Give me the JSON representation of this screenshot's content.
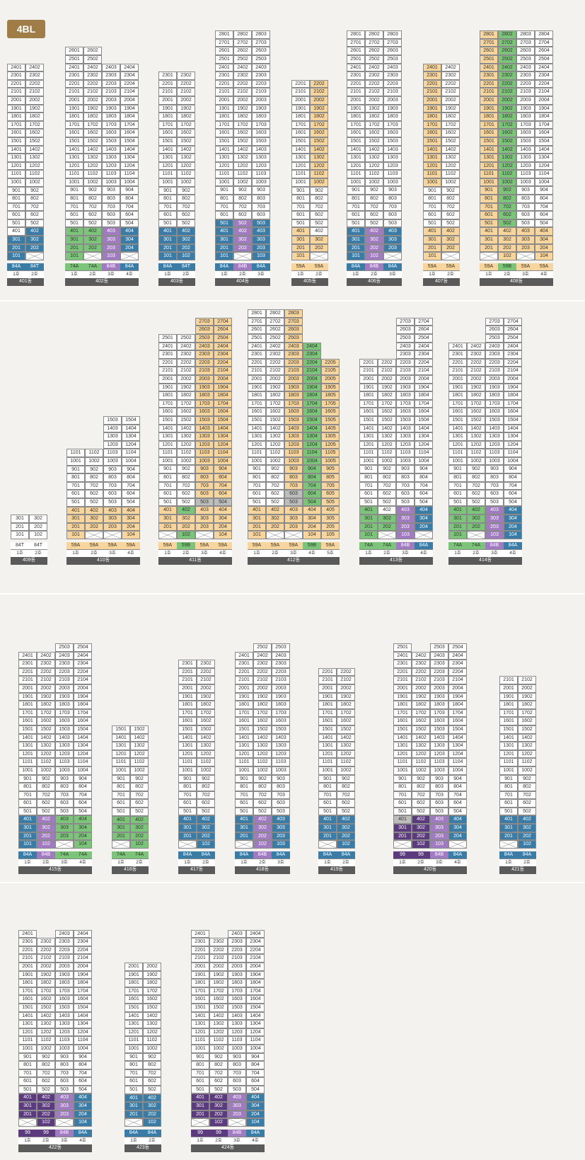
{
  "block_label": "4BL",
  "buildings": [
    {
      "name": "401동",
      "x": 10,
      "bottom": 404,
      "top": 24,
      "cols": 2,
      "types": [
        [
          "84A",
          "b"
        ],
        [
          "84T",
          "b"
        ]
      ],
      "lines": [
        "1호",
        "2호"
      ],
      "colored": {
        "301": "b",
        "302": "b",
        "201": "b",
        "202": "b",
        "101": "b",
        "402": "b"
      },
      "x_cells": [
        "102"
      ]
    },
    {
      "name": "402동",
      "x": 92,
      "bottom": 404,
      "top": 26,
      "cols": 4,
      "col_tops": {
        "3": 24,
        "4": 24
      },
      "types": [
        [
          "74A",
          "g"
        ],
        [
          "74A",
          "g"
        ],
        [
          "84B",
          "p"
        ],
        [
          "84A",
          "b"
        ]
      ],
      "lines": [
        "1호",
        "2호",
        "3호",
        "4호"
      ],
      "colored": {
        "401": "g",
        "402": "g",
        "403": "p",
        "404": "b",
        "301": "g",
        "302": "g",
        "303": "p",
        "304": "b",
        "201": "g",
        "202": "g",
        "203": "p",
        "204": "b",
        "101": "g",
        "103": "p"
      },
      "x_cells": [
        "102",
        "104"
      ]
    },
    {
      "name": "403동",
      "x": 224,
      "bottom": 404,
      "top": 23,
      "cols": 2,
      "types": [
        [
          "84A",
          "b"
        ],
        [
          "84T",
          "b"
        ]
      ],
      "lines": [
        "1호",
        "2호"
      ],
      "colored": {
        "401": "b",
        "402": "b",
        "301": "b",
        "302": "b",
        "201": "b",
        "202": "b",
        "101": "b",
        "102": "b"
      },
      "x_cells": []
    },
    {
      "name": "404동",
      "x": 304,
      "bottom": 404,
      "top": 28,
      "cols": 3,
      "types": [
        [
          "84A",
          "b"
        ],
        [
          "84B",
          "p"
        ],
        [
          "84A",
          "b"
        ]
      ],
      "lines": [
        "1호",
        "2호",
        "3호"
      ],
      "colored": {
        "501": "b",
        "502": "p",
        "503": "b",
        "401": "b",
        "402": "p",
        "403": "b",
        "301": "b",
        "302": "p",
        "303": "b",
        "201": "b",
        "202": "p",
        "203": "b",
        "101": "b",
        "103": "b"
      },
      "x_cells": [
        "102"
      ]
    },
    {
      "name": "405동",
      "x": 412,
      "bottom": 404,
      "top": 22,
      "cols": 2,
      "types": [
        [
          "59A",
          "o"
        ],
        [
          "59A",
          "o"
        ]
      ],
      "lines": [
        "1호",
        "2호"
      ],
      "colored": {
        "2202": "o",
        "2102": "o",
        "2002": "o",
        "1902": "o",
        "1802": "o",
        "1702": "o",
        "1602": "o",
        "1502": "o",
        "1402": "o",
        "1302": "o",
        "1202": "o",
        "1102": "o",
        "1002": "o",
        "401": "o",
        "301": "o",
        "302": "o",
        "201": "o",
        "202": "o",
        "101": "o"
      },
      "x_cells": [
        "102"
      ]
    },
    {
      "name": "406동",
      "x": 490,
      "bottom": 404,
      "top": 28,
      "cols": 3,
      "types": [
        [
          "84A",
          "b"
        ],
        [
          "84B",
          "p"
        ],
        [
          "84A",
          "b"
        ]
      ],
      "lines": [
        "1호",
        "2호",
        "3호"
      ],
      "colored": {
        "401": "b",
        "402": "p",
        "403": "b",
        "301": "b",
        "302": "p",
        "303": "b",
        "201": "b",
        "202": "p",
        "203": "b",
        "101": "b",
        "102": "p"
      },
      "x_cells": [
        "103"
      ]
    },
    {
      "name": "407동",
      "x": 598,
      "bottom": 404,
      "top": 24,
      "cols": 2,
      "types": [
        [
          "59A",
          "o"
        ],
        [
          "59A",
          "o"
        ]
      ],
      "lines": [
        "1호",
        "2호"
      ],
      "colored": {
        "2401": "o",
        "2301": "o",
        "2201": "o",
        "2101": "o",
        "2001": "o",
        "1901": "o",
        "1801": "o",
        "1701": "o",
        "1601": "o",
        "1501": "o",
        "1401": "o",
        "1301": "o",
        "1201": "o",
        "1101": "o",
        "1001": "o",
        "401": "o",
        "402": "o",
        "301": "o",
        "302": "o",
        "201": "o",
        "202": "o",
        "101": "o"
      },
      "x_cells": [
        "102"
      ]
    },
    {
      "name": "408동",
      "x": 678,
      "bottom": 404,
      "top": 28,
      "cols": 4,
      "types": [
        [
          "59A",
          "o"
        ],
        [
          "59B",
          "g"
        ],
        [
          "59A",
          "o"
        ],
        [
          "59A",
          "o"
        ]
      ],
      "lines": [
        "1호",
        "2호",
        "3호",
        "4호"
      ],
      "colored_cols": {
        "1": "o",
        "2": "g"
      },
      "colored_low": {
        "401": "o",
        "402": "o",
        "403": "o",
        "404": "o",
        "301": "o",
        "302": "o",
        "303": "o",
        "304": "o",
        "201": "o",
        "202": "o",
        "203": "o",
        "204": "o",
        "102": "o",
        "104": "o"
      },
      "x_cells": [
        "101",
        "103"
      ]
    },
    {
      "name": "409동",
      "x": 15,
      "bottom": 798,
      "top": 3,
      "cols": 2,
      "types": [
        [
          "84T",
          "w"
        ],
        [
          "84T",
          "w"
        ]
      ],
      "lines": [
        "1호",
        "2호"
      ],
      "colored": {},
      "x_cells": []
    },
    {
      "name": "410동",
      "x": 94,
      "bottom": 798,
      "top": 11,
      "cols": 4,
      "col_tops": {
        "3": 15,
        "4": 15
      },
      "types": [
        [
          "59A",
          "o"
        ],
        [
          "59A",
          "o"
        ],
        [
          "59A",
          "o"
        ],
        [
          "59A",
          "o"
        ]
      ],
      "lines": [
        "1호",
        "2호",
        "3호",
        "4호"
      ],
      "colored": {
        "401": "o",
        "402": "o",
        "403": "o",
        "404": "o",
        "301": "o",
        "302": "o",
        "303": "o",
        "304": "o",
        "201": "o",
        "202": "o",
        "203": "o",
        "204": "o",
        "101": "o",
        "104": "o"
      },
      "x_cells": [
        "102",
        "103"
      ]
    },
    {
      "name": "411동",
      "x": 224,
      "bottom": 798,
      "top": 25,
      "cols": 4,
      "col_tops": {
        "3": 27,
        "4": 27
      },
      "types": [
        [
          "59A",
          "o"
        ],
        [
          "59B",
          "g"
        ],
        [
          "59A",
          "o"
        ],
        [
          "59A",
          "o"
        ]
      ],
      "lines": [
        "1호",
        "2호",
        "3호",
        "4호"
      ],
      "colored_cols": {
        "3": "o",
        "4": "o"
      },
      "colored": {
        "401": "o",
        "402": "g",
        "403": "o",
        "404": "o",
        "301": "o",
        "302": "o",
        "303": "o",
        "304": "o",
        "201": "o",
        "202": "o",
        "203": "o",
        "204": "o",
        "102": "g",
        "104": "o",
        "503": "gr",
        "504": "gr"
      },
      "x_cells": [
        "101",
        "103"
      ]
    },
    {
      "name": "412동",
      "x": 350,
      "bottom": 798,
      "top": 28,
      "cols": 5,
      "col_tops": {
        "4": 24,
        "5": 22
      },
      "types": [
        [
          "59A",
          "o"
        ],
        [
          "59A",
          "o"
        ],
        [
          "59A",
          "o"
        ],
        [
          "59B",
          "g"
        ],
        [
          "59A",
          "o"
        ]
      ],
      "lines": [
        "1호",
        "2호",
        "3호",
        "4호",
        "5호"
      ],
      "colored_cols": {
        "3": "o",
        "4": "g",
        "5": "o"
      },
      "colored": {
        "401": "o",
        "402": "o",
        "403": "o",
        "404": "o",
        "405": "o",
        "301": "o",
        "302": "o",
        "303": "o",
        "304": "o",
        "305": "o",
        "201": "o",
        "202": "o",
        "203": "o",
        "204": "o",
        "205": "o",
        "101": "o",
        "104": "o",
        "105": "o",
        "603": "gr",
        "503": "gr"
      },
      "x_cells": [
        "102",
        "103"
      ]
    },
    {
      "name": "413동",
      "x": 508,
      "bottom": 798,
      "top": 22,
      "cols": 4,
      "col_tops": {
        "3": 27,
        "4": 27
      },
      "types": [
        [
          "74A",
          "g"
        ],
        [
          "74A",
          "g"
        ],
        [
          "84B",
          "p"
        ],
        [
          "84A",
          "b"
        ]
      ],
      "lines": [
        "1호",
        "2호",
        "3호",
        "4호"
      ],
      "colored": {
        "401": "g",
        "403": "p",
        "404": "b",
        "301": "g",
        "302": "g",
        "303": "p",
        "304": "b",
        "201": "g",
        "202": "g",
        "203": "p",
        "204": "b",
        "101": "g",
        "103": "p"
      },
      "x_cells": [
        "102",
        "104"
      ]
    },
    {
      "name": "414동",
      "x": 634,
      "bottom": 798,
      "top": 24,
      "cols": 4,
      "col_tops": {
        "3": 27,
        "4": 27
      },
      "types": [
        [
          "74A",
          "g"
        ],
        [
          "74A",
          "g"
        ],
        [
          "84B",
          "p"
        ],
        [
          "84A",
          "b"
        ]
      ],
      "lines": [
        "1호",
        "2호",
        "3호",
        "4호"
      ],
      "colored": {
        "401": "g",
        "402": "g",
        "403": "p",
        "404": "b",
        "301": "g",
        "302": "g",
        "303": "p",
        "304": "b",
        "201": "g",
        "202": "g",
        "203": "p",
        "204": "b",
        "101": "g",
        "103": "p",
        "104": "b"
      },
      "x_cells": [
        "102"
      ]
    },
    {
      "name": "415동",
      "x": 26,
      "bottom": 1235,
      "top": 24,
      "cols": 4,
      "col_tops": {
        "3": 25,
        "4": 25
      },
      "types": [
        [
          "84A",
          "b"
        ],
        [
          "84B",
          "p"
        ],
        [
          "74A",
          "g"
        ],
        [
          "74A",
          "g"
        ]
      ],
      "lines": [
        "1호",
        "2호",
        "3호",
        "4호"
      ],
      "colored": {
        "401": "b",
        "402": "p",
        "403": "g",
        "404": "g",
        "301": "b",
        "302": "p",
        "303": "g",
        "304": "g",
        "201": "b",
        "202": "p",
        "203": "g",
        "204": "g",
        "101": "b",
        "102": "p",
        "104": "g"
      },
      "x_cells": [
        "103"
      ]
    },
    {
      "name": "416동",
      "x": 158,
      "bottom": 1235,
      "top": 15,
      "cols": 2,
      "types": [
        [
          "74A",
          "g"
        ],
        [
          "74A",
          "g"
        ]
      ],
      "lines": [
        "1호",
        "2호"
      ],
      "colored": {
        "401": "g",
        "402": "g",
        "301": "g",
        "302": "g",
        "201": "g",
        "202": "g",
        "102": "g"
      },
      "x_cells": [
        "101"
      ]
    },
    {
      "name": "417동",
      "x": 252,
      "bottom": 1235,
      "top": 23,
      "cols": 2,
      "types": [
        [
          "84A",
          "b"
        ],
        [
          "84A",
          "b"
        ]
      ],
      "lines": [
        "1호",
        "2호"
      ],
      "colored": {
        "401": "b",
        "402": "b",
        "301": "b",
        "302": "b",
        "201": "b",
        "202": "b",
        "102": "b"
      },
      "x_cells": [
        "101"
      ]
    },
    {
      "name": "418동",
      "x": 332,
      "bottom": 1235,
      "top": 24,
      "cols": 3,
      "col_tops": {
        "2": 25,
        "3": 25
      },
      "types": [
        [
          "84A",
          "b"
        ],
        [
          "84B",
          "p"
        ],
        [
          "84A",
          "b"
        ]
      ],
      "lines": [
        "1호",
        "2호",
        "3호"
      ],
      "colored": {
        "401": "b",
        "402": "p",
        "403": "b",
        "301": "b",
        "302": "p",
        "303": "b",
        "201": "b",
        "202": "p",
        "203": "b",
        "102": "p",
        "103": "b"
      },
      "x_cells": [
        "101"
      ]
    },
    {
      "name": "419동",
      "x": 450,
      "bottom": 1235,
      "top": 22,
      "cols": 2,
      "types": [
        [
          "84A",
          "b"
        ],
        [
          "84A",
          "b"
        ]
      ],
      "lines": [
        "1호",
        "2호"
      ],
      "colored": {
        "401": "b",
        "402": "b",
        "301": "b",
        "302": "b",
        "201": "b",
        "202": "b",
        "102": "b"
      },
      "x_cells": [
        "101"
      ]
    },
    {
      "name": "420동",
      "x": 556,
      "bottom": 1235,
      "top": 25,
      "cols": 4,
      "types": [
        [
          "99",
          "d"
        ],
        [
          "99",
          "d"
        ],
        [
          "84B",
          "p"
        ],
        [
          "84A",
          "b"
        ]
      ],
      "lines": [
        "1호",
        "2호",
        "3호",
        "4호"
      ],
      "colored": {
        "402": "d",
        "403": "p",
        "404": "b",
        "301": "d",
        "302": "d",
        "303": "p",
        "304": "b",
        "201": "d",
        "202": "d",
        "203": "p",
        "204": "b",
        "102": "d",
        "103": "p"
      },
      "x_cells": [
        "101",
        "104"
      ],
      "gray": {
        "401": "gr"
      },
      "skip": [
        "2502"
      ]
    },
    {
      "name": "421동",
      "x": 706,
      "bottom": 1235,
      "top": 21,
      "cols": 2,
      "types": [
        [
          "84A",
          "b"
        ],
        [
          "84A",
          "b"
        ]
      ],
      "lines": [
        "1호",
        "2호"
      ],
      "colored": {
        "401": "b",
        "402": "b",
        "301": "b",
        "302": "b",
        "201": "b",
        "202": "b",
        "102": "b"
      },
      "x_cells": [
        "101"
      ]
    },
    {
      "name": "422동",
      "x": 26,
      "bottom": 1628,
      "top": 24,
      "cols": 4,
      "types": [
        [
          "99",
          "d"
        ],
        [
          "99",
          "d"
        ],
        [
          "84B",
          "p"
        ],
        [
          "84A",
          "b"
        ]
      ],
      "lines": [
        "1호",
        "2호",
        "3호",
        "4호"
      ],
      "colored": {
        "401": "d",
        "402": "d",
        "403": "p",
        "404": "b",
        "301": "d",
        "302": "d",
        "303": "p",
        "304": "b",
        "201": "d",
        "202": "d",
        "203": "p",
        "204": "b",
        "102": "d",
        "104": "b"
      },
      "x_cells": [
        "101",
        "103"
      ],
      "skip": [
        "2402"
      ]
    },
    {
      "name": "423동",
      "x": 176,
      "bottom": 1628,
      "top": 20,
      "cols": 2,
      "types": [
        [
          "84A",
          "b"
        ],
        [
          "84A",
          "b"
        ]
      ],
      "lines": [
        "1호",
        "2호"
      ],
      "colored": {
        "401": "b",
        "402": "b",
        "301": "b",
        "302": "b",
        "201": "b",
        "202": "b",
        "102": "b"
      },
      "x_cells": [
        "101"
      ]
    },
    {
      "name": "424동",
      "x": 270,
      "bottom": 1628,
      "top": 24,
      "cols": 4,
      "types": [
        [
          "99",
          "d"
        ],
        [
          "99",
          "d"
        ],
        [
          "84B",
          "p"
        ],
        [
          "84A",
          "b"
        ]
      ],
      "lines": [
        "1호",
        "2호",
        "3호",
        "4호"
      ],
      "colored": {
        "401": "d",
        "402": "d",
        "403": "p",
        "404": "b",
        "301": "d",
        "302": "d",
        "303": "p",
        "304": "b",
        "201": "d",
        "202": "d",
        "203": "p",
        "204": "b",
        "102": "d",
        "104": "b"
      },
      "x_cells": [
        "101",
        "103"
      ],
      "skip": [
        "2402"
      ]
    }
  ]
}
